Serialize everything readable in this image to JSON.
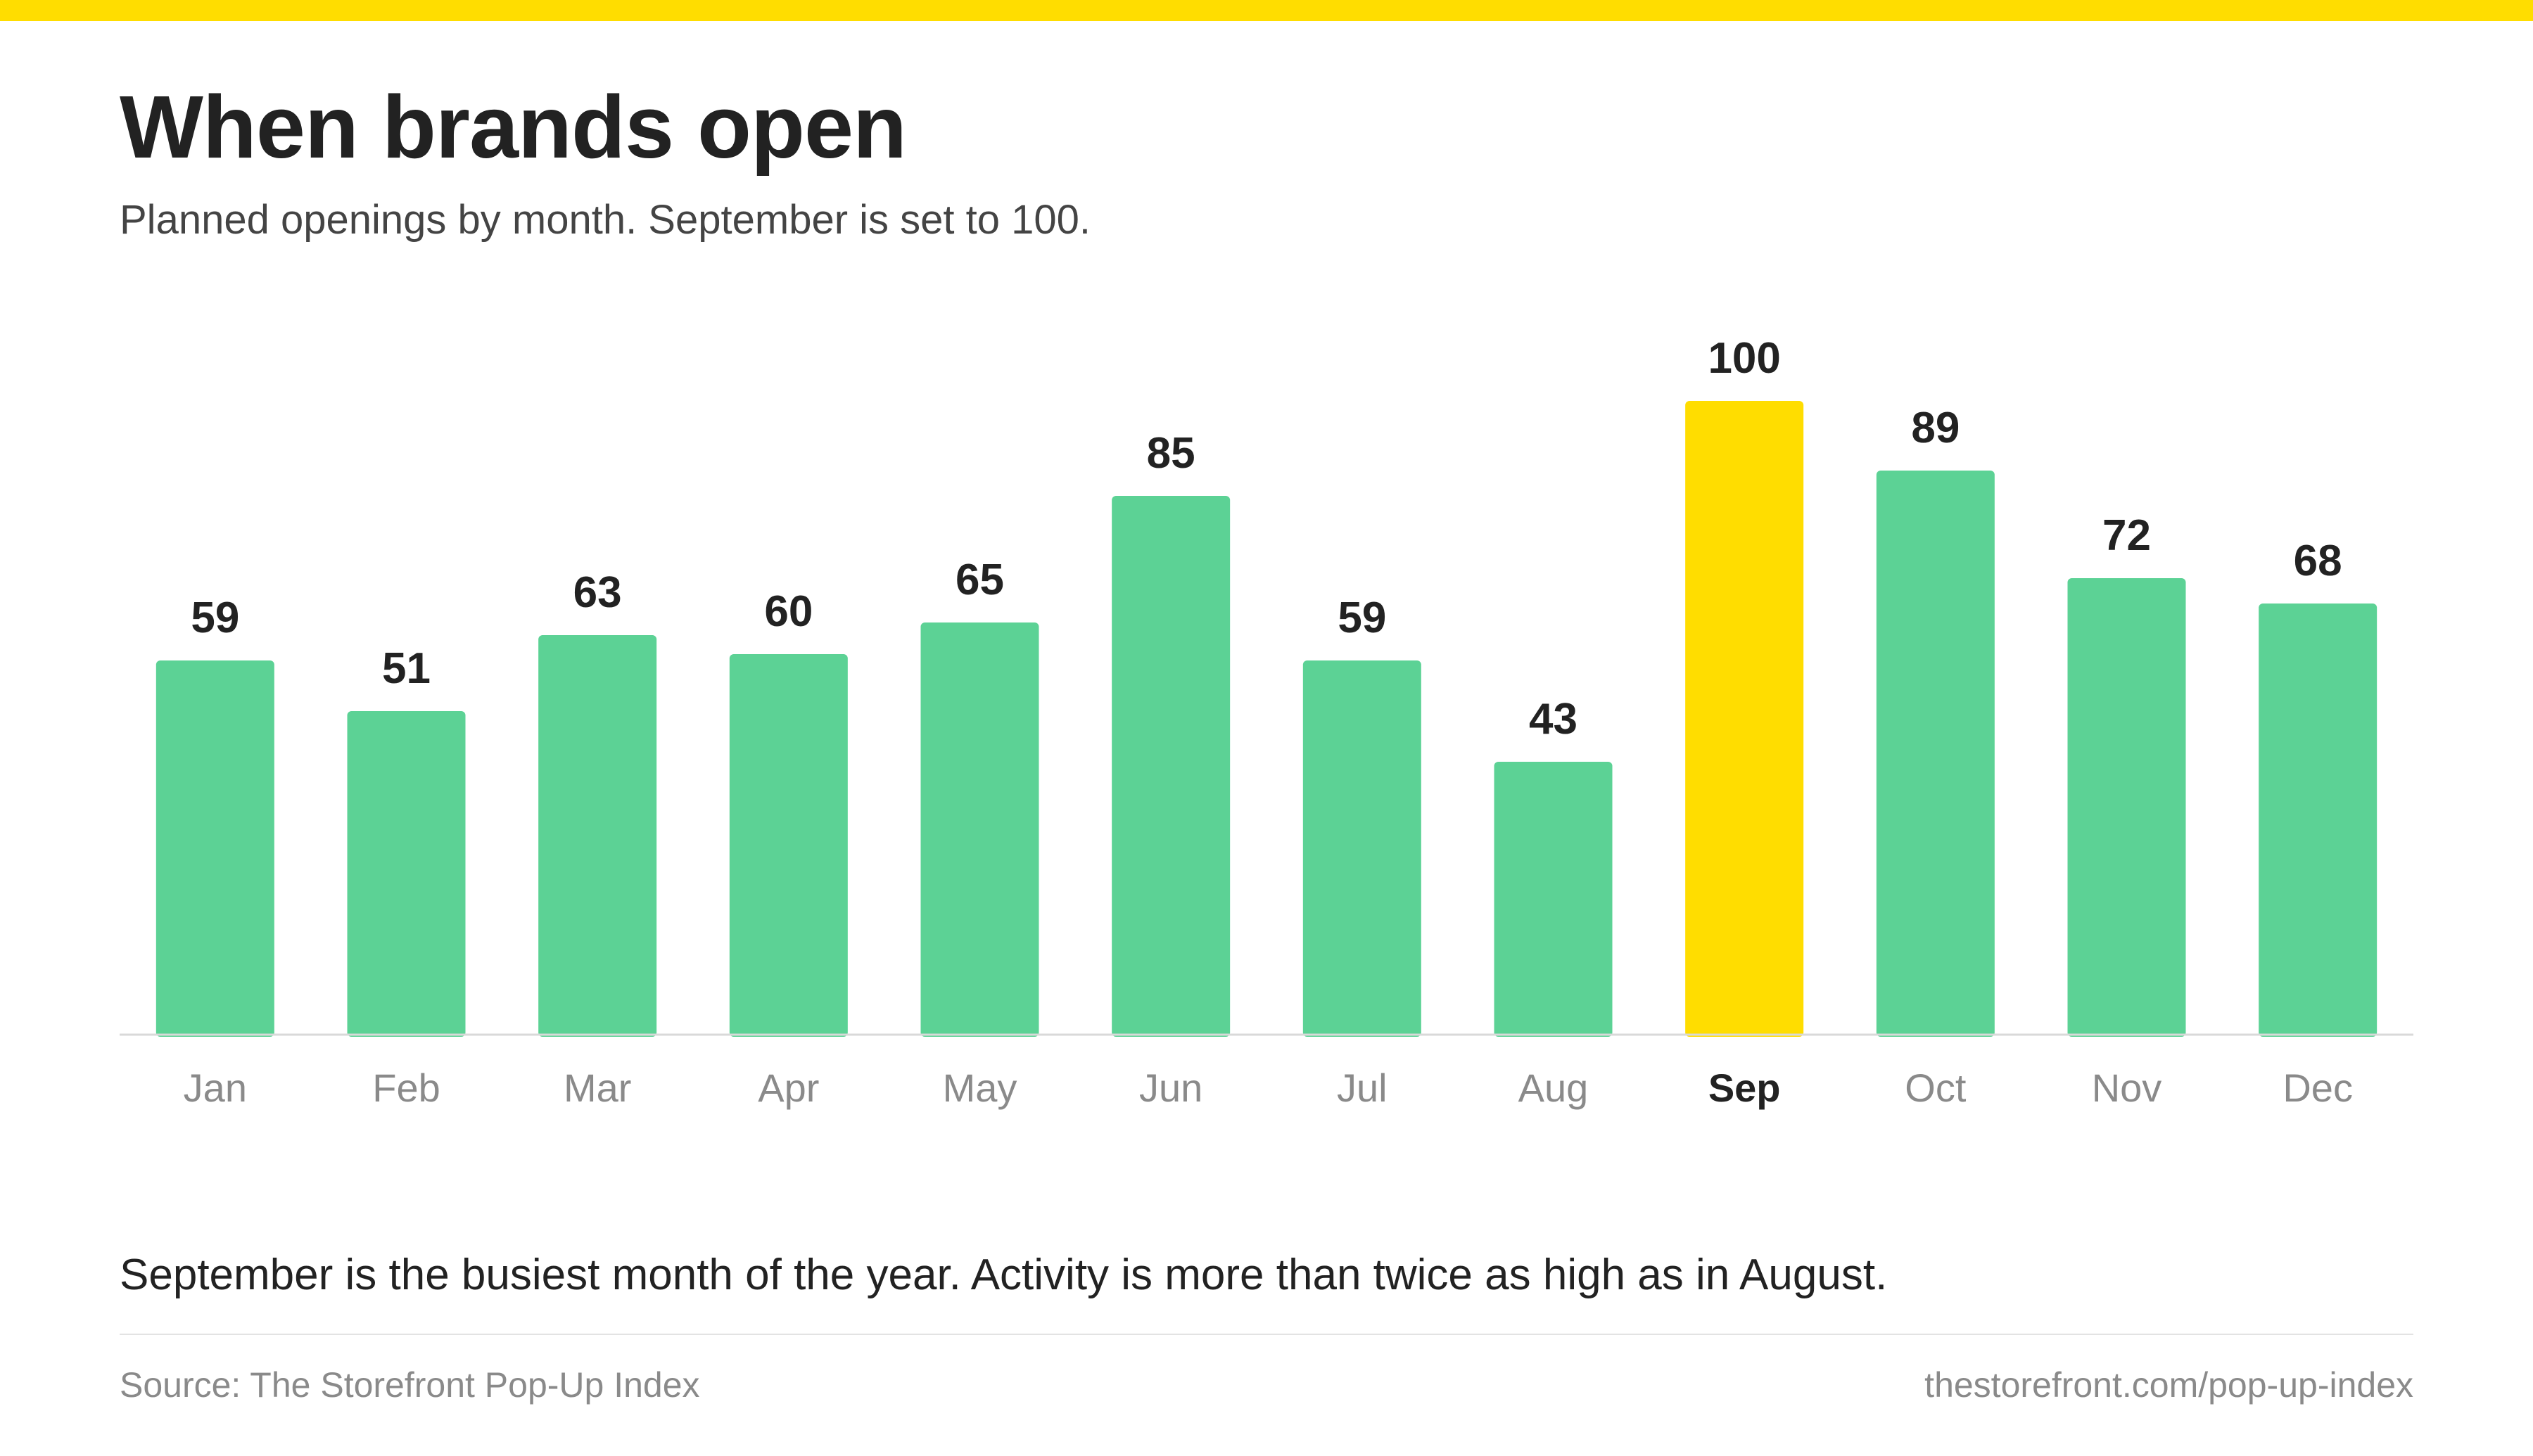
{
  "header": {
    "title": "When brands open",
    "subtitle": "Planned openings by month. September is set to 100."
  },
  "colors": {
    "accent": "#FFDD00",
    "bar": "#5CD295",
    "highlight_bar": "#FFDD00",
    "text_dark": "#222222",
    "text_muted": "#8A8A8A",
    "baseline": "#D9D9D9"
  },
  "chart_data": {
    "type": "bar",
    "title": "When brands open",
    "subtitle": "Planned openings by month. September is set to 100.",
    "categories": [
      "Jan",
      "Feb",
      "Mar",
      "Apr",
      "May",
      "Jun",
      "Jul",
      "Aug",
      "Sep",
      "Oct",
      "Nov",
      "Dec"
    ],
    "values": [
      59,
      51,
      63,
      60,
      65,
      85,
      59,
      43,
      100,
      89,
      72,
      68
    ],
    "highlight_category": "Sep",
    "ylim": [
      0,
      100
    ],
    "grid": false,
    "data_labels": true
  },
  "footer": {
    "takeaway": "September is the busiest month of the year. Activity is more than twice as high as in August.",
    "source": "Source: The Storefront Pop-Up Index",
    "url": "thestorefront.com/pop-up-index"
  }
}
